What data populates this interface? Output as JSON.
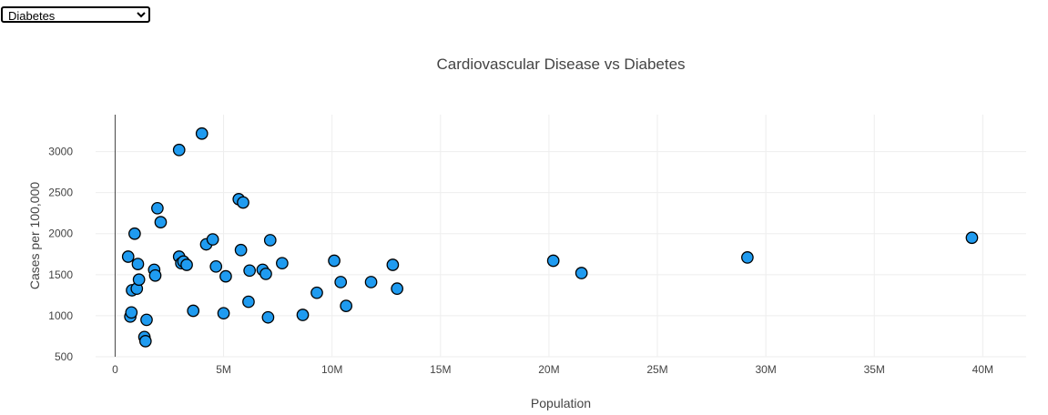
{
  "selector": {
    "selected": "Diabetes",
    "options": [
      "Diabetes"
    ]
  },
  "colors": {
    "marker": "#1f9bf0",
    "marker_border": "#000000"
  },
  "chart_data": {
    "type": "scatter",
    "title": "Cardiovascular Disease vs Diabetes",
    "xlabel": "Population",
    "ylabel": "Cases per 100,000",
    "xlim": [
      -900000,
      42000000
    ],
    "ylim": [
      500,
      3450
    ],
    "x_ticks": [
      {
        "value": 0,
        "label": "0"
      },
      {
        "value": 5000000,
        "label": "5M"
      },
      {
        "value": 10000000,
        "label": "10M"
      },
      {
        "value": 15000000,
        "label": "15M"
      },
      {
        "value": 20000000,
        "label": "20M"
      },
      {
        "value": 25000000,
        "label": "25M"
      },
      {
        "value": 30000000,
        "label": "30M"
      },
      {
        "value": 35000000,
        "label": "35M"
      },
      {
        "value": 40000000,
        "label": "40M"
      }
    ],
    "y_ticks": [
      {
        "value": 500,
        "label": "500"
      },
      {
        "value": 1000,
        "label": "1000"
      },
      {
        "value": 1500,
        "label": "1500"
      },
      {
        "value": 2000,
        "label": "2000"
      },
      {
        "value": 2500,
        "label": "2500"
      },
      {
        "value": 3000,
        "label": "3000"
      }
    ],
    "grid": true,
    "series": [
      {
        "x": [
          600000,
          700000,
          750000,
          780000,
          900000,
          1000000,
          1050000,
          1100000,
          1350000,
          1400000,
          1450000,
          1800000,
          1850000,
          1950000,
          2100000,
          2950000,
          2950000,
          3050000,
          3150000,
          3300000,
          3600000,
          4000000,
          4200000,
          4500000,
          4650000,
          5000000,
          5100000,
          5700000,
          5800000,
          5900000,
          6150000,
          6200000,
          6800000,
          6950000,
          7050000,
          7150000,
          7700000,
          8650000,
          9300000,
          10100000,
          10400000,
          10650000,
          11800000,
          12800000,
          13000000,
          20200000,
          21500000,
          29150000,
          39500000
        ],
        "y": [
          1720,
          990,
          1040,
          1310,
          2000,
          1330,
          1630,
          1440,
          740,
          690,
          950,
          1560,
          1490,
          2310,
          2140,
          3020,
          1720,
          1640,
          1660,
          1620,
          1060,
          3220,
          1870,
          1930,
          1600,
          1030,
          1480,
          2420,
          1800,
          2380,
          1170,
          1550,
          1560,
          1510,
          980,
          1920,
          1640,
          1010,
          1280,
          1670,
          1410,
          1120,
          1410,
          1620,
          1330,
          1670,
          1520,
          1710,
          1950
        ]
      }
    ]
  }
}
